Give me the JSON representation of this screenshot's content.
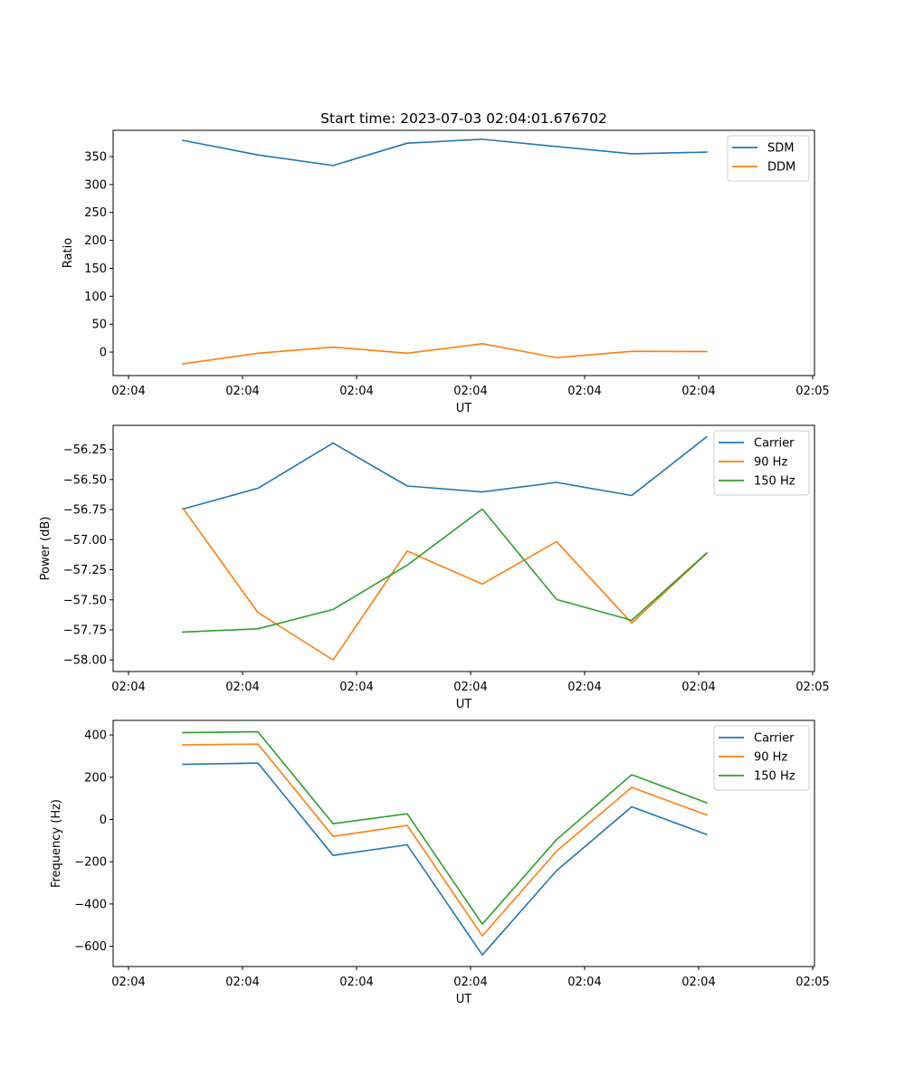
{
  "figure_title": "Start time: 2023-07-03 02:04:01.676702",
  "chart_data": [
    {
      "type": "line",
      "title": "Start time: 2023-07-03 02:04:01.676702",
      "xlabel": "UT",
      "ylabel": "Ratio",
      "x_unit": "seconds after 02:04:00",
      "x": [
        4.76,
        11.35,
        17.94,
        24.44,
        31.03,
        37.54,
        44.13,
        50.71
      ],
      "xlim": [
        -1.35,
        60.16
      ],
      "xticks": [
        0,
        10,
        20,
        30,
        40,
        50,
        60
      ],
      "xtick_labels": [
        "02:04",
        "02:04",
        "02:04",
        "02:04",
        "02:04",
        "02:04",
        "02:05"
      ],
      "ylim": [
        -42,
        397
      ],
      "yticks": [
        0,
        50,
        100,
        150,
        200,
        250,
        300,
        350
      ],
      "ytick_labels": [
        "0",
        "50",
        "100",
        "150",
        "200",
        "250",
        "300",
        "350"
      ],
      "grid": false,
      "legend": "top-right",
      "series": [
        {
          "name": "SDM",
          "color": "#1f77b4",
          "values": [
            379,
            353,
            334,
            374,
            381,
            368,
            355,
            358
          ]
        },
        {
          "name": "DDM",
          "color": "#ff7f0e",
          "values": [
            -21,
            -2,
            9,
            -2,
            15,
            -10,
            1.5,
            1
          ]
        }
      ]
    },
    {
      "type": "line",
      "title": "",
      "xlabel": "UT",
      "ylabel": "Power (dB)",
      "x_unit": "seconds after 02:04:00",
      "x": [
        4.76,
        11.35,
        17.94,
        24.44,
        31.03,
        37.54,
        44.13,
        50.71
      ],
      "xlim": [
        -1.35,
        60.16
      ],
      "xticks": [
        0,
        10,
        20,
        30,
        40,
        50,
        60
      ],
      "xtick_labels": [
        "02:04",
        "02:04",
        "02:04",
        "02:04",
        "02:04",
        "02:04",
        "02:05"
      ],
      "ylim": [
        -58.096,
        -56.05
      ],
      "yticks": [
        -58.0,
        -57.75,
        -57.5,
        -57.25,
        -57.0,
        -56.75,
        -56.5,
        -56.25
      ],
      "ytick_labels": [
        "−58.00",
        "−57.75",
        "−57.50",
        "−57.25",
        "−57.00",
        "−56.75",
        "−56.50",
        "−56.25"
      ],
      "grid": false,
      "legend": "top-right",
      "series": [
        {
          "name": "Carrier",
          "color": "#1f77b4",
          "values": [
            -56.746,
            -56.573,
            -56.197,
            -56.554,
            -56.603,
            -56.524,
            -56.633,
            -56.145
          ]
        },
        {
          "name": "90 Hz",
          "color": "#ff7f0e",
          "values": [
            -56.738,
            -57.606,
            -58.0,
            -57.095,
            -57.369,
            -57.016,
            -57.693,
            -57.114
          ]
        },
        {
          "name": "150 Hz",
          "color": "#2ca02c",
          "values": [
            -57.768,
            -57.741,
            -57.58,
            -57.212,
            -56.746,
            -57.497,
            -57.67,
            -57.11
          ]
        }
      ]
    },
    {
      "type": "line",
      "title": "",
      "xlabel": "UT",
      "ylabel": "Frequency (Hz)",
      "x_unit": "seconds after 02:04:00",
      "x": [
        4.76,
        11.35,
        17.94,
        24.44,
        31.03,
        37.54,
        44.13,
        50.71
      ],
      "xlim": [
        -1.35,
        60.16
      ],
      "xticks": [
        0,
        10,
        20,
        30,
        40,
        50,
        60
      ],
      "xtick_labels": [
        "02:04",
        "02:04",
        "02:04",
        "02:04",
        "02:04",
        "02:04",
        "02:05"
      ],
      "ylim": [
        -696,
        469
      ],
      "yticks": [
        -600,
        -400,
        -200,
        0,
        200,
        400
      ],
      "ytick_labels": [
        "−600",
        "−400",
        "−200",
        "0",
        "200",
        "400"
      ],
      "grid": false,
      "legend": "top-right",
      "series": [
        {
          "name": "Carrier",
          "color": "#1f77b4",
          "values": [
            261,
            267,
            -170,
            -120,
            -641,
            -242,
            60,
            -71
          ]
        },
        {
          "name": "90 Hz",
          "color": "#ff7f0e",
          "values": [
            353,
            357,
            -80,
            -28,
            -551,
            -150,
            152,
            21
          ]
        },
        {
          "name": "150 Hz",
          "color": "#2ca02c",
          "values": [
            411,
            415,
            -20,
            27,
            -495,
            -95,
            212,
            79
          ]
        }
      ]
    }
  ]
}
